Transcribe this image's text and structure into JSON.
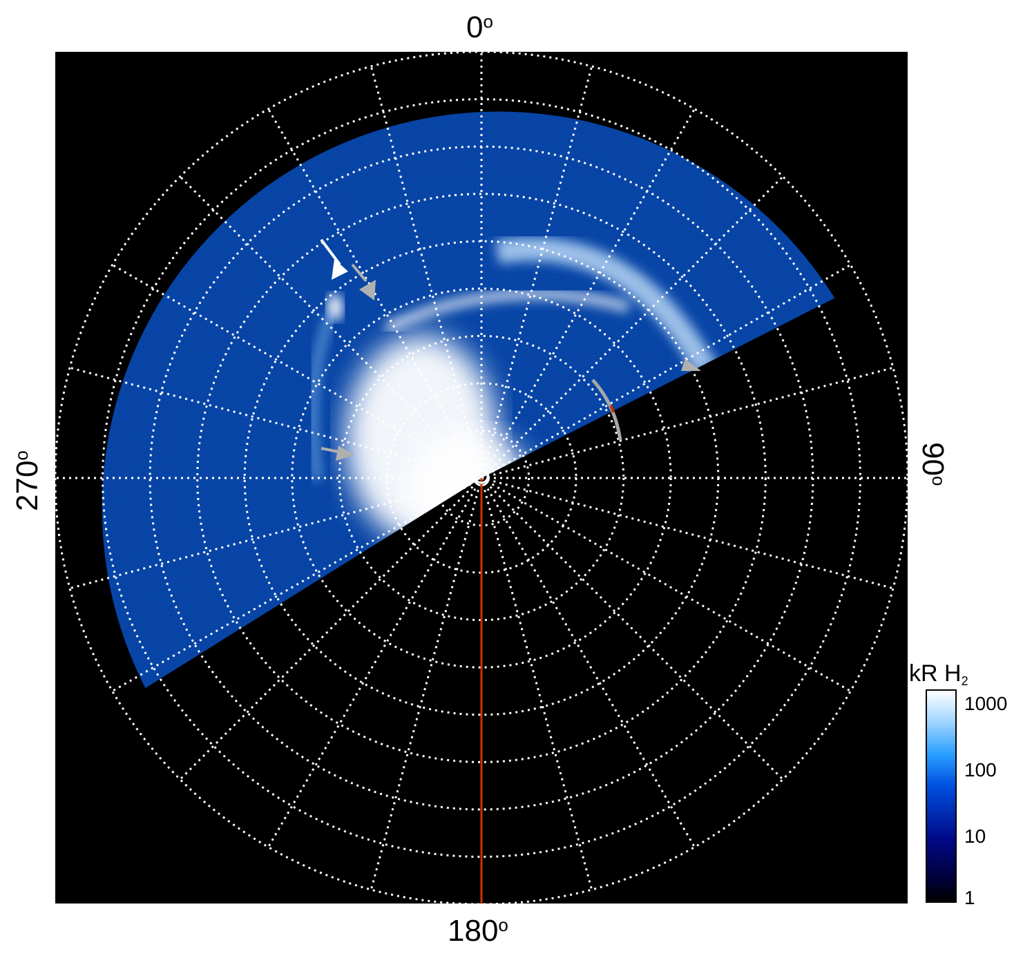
{
  "angle_labels": {
    "top": "0",
    "right": "90",
    "bottom": "180",
    "left": "270",
    "degree_symbol": "o"
  },
  "colorbar": {
    "title_main": "kR H",
    "title_sub": "2",
    "tick_labels": [
      "1000",
      "100",
      "10",
      "1"
    ],
    "colors": [
      "#000000",
      "#000a8a",
      "#0050e0",
      "#2aa0ff",
      "#9fd4ff",
      "#ffffff"
    ]
  },
  "image": {
    "background": "#000000",
    "grid_color": "#ffffff",
    "meridian_line_color": "#cc3300",
    "arrow_colors": [
      "#ffffff",
      "#b0b0b0"
    ]
  }
}
